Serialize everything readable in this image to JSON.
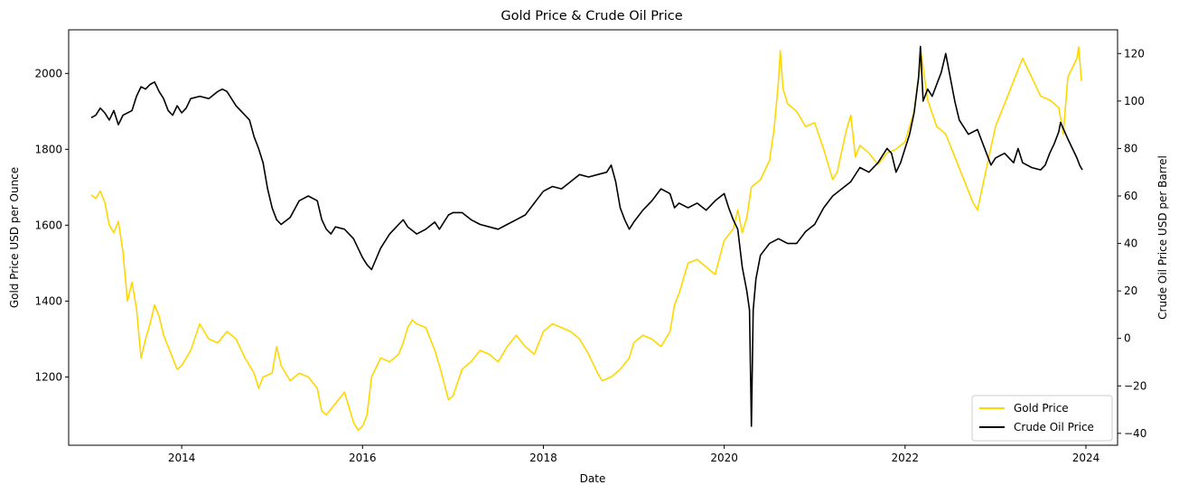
{
  "chart_data": {
    "type": "line",
    "title": "Gold Price & Crude Oil Price",
    "xlabel": "Date",
    "ylabel_left": "Gold Price USD per Ounce",
    "ylabel_right": "Crude Oil Price USD per Barrel",
    "x_ticks": [
      "2014",
      "2016",
      "2018",
      "2020",
      "2022",
      "2024"
    ],
    "xlim": [
      2012.75,
      2024.35
    ],
    "ylim_left": [
      1020,
      2115
    ],
    "ylim_right": [
      -45,
      130
    ],
    "y_ticks_left": [
      1200,
      1400,
      1600,
      1800,
      2000
    ],
    "y_ticks_right": [
      -40,
      -20,
      0,
      20,
      40,
      60,
      80,
      100,
      120
    ],
    "grid": false,
    "legend_position": "lower-right",
    "series": [
      {
        "name": "Gold Price",
        "axis": "left",
        "color": "#FFD700",
        "points": [
          [
            2013.0,
            1680
          ],
          [
            2013.05,
            1670
          ],
          [
            2013.1,
            1690
          ],
          [
            2013.15,
            1660
          ],
          [
            2013.2,
            1600
          ],
          [
            2013.25,
            1580
          ],
          [
            2013.3,
            1610
          ],
          [
            2013.35,
            1530
          ],
          [
            2013.4,
            1400
          ],
          [
            2013.45,
            1450
          ],
          [
            2013.5,
            1380
          ],
          [
            2013.55,
            1250
          ],
          [
            2013.6,
            1300
          ],
          [
            2013.65,
            1340
          ],
          [
            2013.7,
            1390
          ],
          [
            2013.75,
            1360
          ],
          [
            2013.8,
            1310
          ],
          [
            2013.85,
            1280
          ],
          [
            2013.9,
            1250
          ],
          [
            2013.95,
            1220
          ],
          [
            2014.0,
            1230
          ],
          [
            2014.1,
            1270
          ],
          [
            2014.2,
            1340
          ],
          [
            2014.3,
            1300
          ],
          [
            2014.4,
            1290
          ],
          [
            2014.5,
            1320
          ],
          [
            2014.6,
            1300
          ],
          [
            2014.7,
            1250
          ],
          [
            2014.8,
            1210
          ],
          [
            2014.85,
            1170
          ],
          [
            2014.9,
            1200
          ],
          [
            2015.0,
            1210
          ],
          [
            2015.05,
            1280
          ],
          [
            2015.1,
            1230
          ],
          [
            2015.2,
            1190
          ],
          [
            2015.3,
            1210
          ],
          [
            2015.4,
            1200
          ],
          [
            2015.5,
            1170
          ],
          [
            2015.55,
            1110
          ],
          [
            2015.6,
            1100
          ],
          [
            2015.7,
            1130
          ],
          [
            2015.8,
            1160
          ],
          [
            2015.9,
            1080
          ],
          [
            2015.95,
            1060
          ],
          [
            2016.0,
            1070
          ],
          [
            2016.05,
            1100
          ],
          [
            2016.1,
            1200
          ],
          [
            2016.2,
            1250
          ],
          [
            2016.3,
            1240
          ],
          [
            2016.4,
            1260
          ],
          [
            2016.45,
            1290
          ],
          [
            2016.5,
            1330
          ],
          [
            2016.55,
            1350
          ],
          [
            2016.6,
            1340
          ],
          [
            2016.7,
            1330
          ],
          [
            2016.8,
            1270
          ],
          [
            2016.85,
            1230
          ],
          [
            2016.95,
            1140
          ],
          [
            2017.0,
            1150
          ],
          [
            2017.1,
            1220
          ],
          [
            2017.2,
            1240
          ],
          [
            2017.3,
            1270
          ],
          [
            2017.4,
            1260
          ],
          [
            2017.5,
            1240
          ],
          [
            2017.6,
            1280
          ],
          [
            2017.7,
            1310
          ],
          [
            2017.8,
            1280
          ],
          [
            2017.9,
            1260
          ],
          [
            2018.0,
            1320
          ],
          [
            2018.1,
            1340
          ],
          [
            2018.2,
            1330
          ],
          [
            2018.3,
            1320
          ],
          [
            2018.4,
            1300
          ],
          [
            2018.5,
            1260
          ],
          [
            2018.6,
            1210
          ],
          [
            2018.65,
            1190
          ],
          [
            2018.75,
            1200
          ],
          [
            2018.85,
            1220
          ],
          [
            2018.95,
            1250
          ],
          [
            2019.0,
            1290
          ],
          [
            2019.1,
            1310
          ],
          [
            2019.2,
            1300
          ],
          [
            2019.3,
            1280
          ],
          [
            2019.4,
            1320
          ],
          [
            2019.45,
            1390
          ],
          [
            2019.5,
            1420
          ],
          [
            2019.6,
            1500
          ],
          [
            2019.7,
            1510
          ],
          [
            2019.8,
            1490
          ],
          [
            2019.9,
            1470
          ],
          [
            2020.0,
            1560
          ],
          [
            2020.1,
            1590
          ],
          [
            2020.15,
            1640
          ],
          [
            2020.2,
            1580
          ],
          [
            2020.25,
            1620
          ],
          [
            2020.3,
            1700
          ],
          [
            2020.4,
            1720
          ],
          [
            2020.5,
            1770
          ],
          [
            2020.55,
            1850
          ],
          [
            2020.6,
            1980
          ],
          [
            2020.62,
            2060
          ],
          [
            2020.65,
            1960
          ],
          [
            2020.7,
            1920
          ],
          [
            2020.8,
            1900
          ],
          [
            2020.9,
            1860
          ],
          [
            2021.0,
            1870
          ],
          [
            2021.1,
            1800
          ],
          [
            2021.2,
            1720
          ],
          [
            2021.25,
            1740
          ],
          [
            2021.35,
            1850
          ],
          [
            2021.4,
            1890
          ],
          [
            2021.45,
            1780
          ],
          [
            2021.5,
            1810
          ],
          [
            2021.6,
            1790
          ],
          [
            2021.7,
            1760
          ],
          [
            2021.8,
            1790
          ],
          [
            2021.9,
            1800
          ],
          [
            2022.0,
            1820
          ],
          [
            2022.1,
            1900
          ],
          [
            2022.18,
            2050
          ],
          [
            2022.25,
            1930
          ],
          [
            2022.35,
            1860
          ],
          [
            2022.45,
            1840
          ],
          [
            2022.55,
            1780
          ],
          [
            2022.65,
            1720
          ],
          [
            2022.75,
            1660
          ],
          [
            2022.8,
            1640
          ],
          [
            2022.9,
            1750
          ],
          [
            2023.0,
            1860
          ],
          [
            2023.1,
            1920
          ],
          [
            2023.2,
            1980
          ],
          [
            2023.3,
            2040
          ],
          [
            2023.4,
            1990
          ],
          [
            2023.5,
            1940
          ],
          [
            2023.6,
            1930
          ],
          [
            2023.7,
            1910
          ],
          [
            2023.75,
            1840
          ],
          [
            2023.8,
            1990
          ],
          [
            2023.9,
            2040
          ],
          [
            2023.92,
            2070
          ],
          [
            2023.95,
            1980
          ]
        ]
      },
      {
        "name": "Crude Oil Price",
        "axis": "right",
        "color": "#000000",
        "points": [
          [
            2013.0,
            93
          ],
          [
            2013.05,
            94
          ],
          [
            2013.1,
            97
          ],
          [
            2013.15,
            95
          ],
          [
            2013.2,
            92
          ],
          [
            2013.25,
            96
          ],
          [
            2013.3,
            90
          ],
          [
            2013.35,
            94
          ],
          [
            2013.45,
            96
          ],
          [
            2013.5,
            102
          ],
          [
            2013.55,
            106
          ],
          [
            2013.6,
            105
          ],
          [
            2013.65,
            107
          ],
          [
            2013.7,
            108
          ],
          [
            2013.75,
            104
          ],
          [
            2013.8,
            101
          ],
          [
            2013.85,
            96
          ],
          [
            2013.9,
            94
          ],
          [
            2013.95,
            98
          ],
          [
            2014.0,
            95
          ],
          [
            2014.05,
            97
          ],
          [
            2014.1,
            101
          ],
          [
            2014.2,
            102
          ],
          [
            2014.3,
            101
          ],
          [
            2014.4,
            104
          ],
          [
            2014.45,
            105
          ],
          [
            2014.5,
            104
          ],
          [
            2014.55,
            101
          ],
          [
            2014.6,
            98
          ],
          [
            2014.7,
            94
          ],
          [
            2014.75,
            92
          ],
          [
            2014.8,
            85
          ],
          [
            2014.85,
            80
          ],
          [
            2014.9,
            74
          ],
          [
            2014.95,
            63
          ],
          [
            2015.0,
            55
          ],
          [
            2015.05,
            50
          ],
          [
            2015.1,
            48
          ],
          [
            2015.2,
            51
          ],
          [
            2015.3,
            58
          ],
          [
            2015.4,
            60
          ],
          [
            2015.5,
            58
          ],
          [
            2015.55,
            50
          ],
          [
            2015.6,
            46
          ],
          [
            2015.65,
            44
          ],
          [
            2015.7,
            47
          ],
          [
            2015.8,
            46
          ],
          [
            2015.9,
            42
          ],
          [
            2015.95,
            38
          ],
          [
            2016.0,
            34
          ],
          [
            2016.05,
            31
          ],
          [
            2016.1,
            29
          ],
          [
            2016.2,
            38
          ],
          [
            2016.3,
            44
          ],
          [
            2016.4,
            48
          ],
          [
            2016.45,
            50
          ],
          [
            2016.5,
            47
          ],
          [
            2016.6,
            44
          ],
          [
            2016.7,
            46
          ],
          [
            2016.8,
            49
          ],
          [
            2016.85,
            46
          ],
          [
            2016.95,
            52
          ],
          [
            2017.0,
            53
          ],
          [
            2017.1,
            53
          ],
          [
            2017.2,
            50
          ],
          [
            2017.3,
            48
          ],
          [
            2017.4,
            47
          ],
          [
            2017.5,
            46
          ],
          [
            2017.6,
            48
          ],
          [
            2017.7,
            50
          ],
          [
            2017.8,
            52
          ],
          [
            2017.9,
            57
          ],
          [
            2018.0,
            62
          ],
          [
            2018.1,
            64
          ],
          [
            2018.2,
            63
          ],
          [
            2018.3,
            66
          ],
          [
            2018.4,
            69
          ],
          [
            2018.5,
            68
          ],
          [
            2018.6,
            69
          ],
          [
            2018.7,
            70
          ],
          [
            2018.75,
            73
          ],
          [
            2018.8,
            66
          ],
          [
            2018.85,
            55
          ],
          [
            2018.9,
            50
          ],
          [
            2018.95,
            46
          ],
          [
            2019.0,
            49
          ],
          [
            2019.1,
            54
          ],
          [
            2019.2,
            58
          ],
          [
            2019.3,
            63
          ],
          [
            2019.4,
            61
          ],
          [
            2019.45,
            55
          ],
          [
            2019.5,
            57
          ],
          [
            2019.6,
            55
          ],
          [
            2019.7,
            57
          ],
          [
            2019.8,
            54
          ],
          [
            2019.9,
            58
          ],
          [
            2020.0,
            61
          ],
          [
            2020.05,
            55
          ],
          [
            2020.1,
            50
          ],
          [
            2020.15,
            46
          ],
          [
            2020.2,
            30
          ],
          [
            2020.25,
            20
          ],
          [
            2020.28,
            12
          ],
          [
            2020.3,
            -37
          ],
          [
            2020.32,
            12
          ],
          [
            2020.35,
            25
          ],
          [
            2020.4,
            35
          ],
          [
            2020.5,
            40
          ],
          [
            2020.6,
            42
          ],
          [
            2020.7,
            40
          ],
          [
            2020.8,
            40
          ],
          [
            2020.9,
            45
          ],
          [
            2021.0,
            48
          ],
          [
            2021.1,
            55
          ],
          [
            2021.2,
            60
          ],
          [
            2021.3,
            63
          ],
          [
            2021.4,
            66
          ],
          [
            2021.5,
            72
          ],
          [
            2021.6,
            70
          ],
          [
            2021.7,
            74
          ],
          [
            2021.8,
            80
          ],
          [
            2021.85,
            78
          ],
          [
            2021.9,
            70
          ],
          [
            2021.95,
            74
          ],
          [
            2022.0,
            80
          ],
          [
            2022.05,
            86
          ],
          [
            2022.1,
            95
          ],
          [
            2022.15,
            110
          ],
          [
            2022.17,
            123
          ],
          [
            2022.2,
            100
          ],
          [
            2022.25,
            105
          ],
          [
            2022.3,
            102
          ],
          [
            2022.4,
            112
          ],
          [
            2022.45,
            120
          ],
          [
            2022.5,
            110
          ],
          [
            2022.55,
            100
          ],
          [
            2022.6,
            92
          ],
          [
            2022.7,
            86
          ],
          [
            2022.8,
            88
          ],
          [
            2022.9,
            78
          ],
          [
            2022.95,
            73
          ],
          [
            2023.0,
            76
          ],
          [
            2023.1,
            78
          ],
          [
            2023.2,
            74
          ],
          [
            2023.25,
            80
          ],
          [
            2023.3,
            74
          ],
          [
            2023.4,
            72
          ],
          [
            2023.5,
            71
          ],
          [
            2023.55,
            73
          ],
          [
            2023.6,
            78
          ],
          [
            2023.65,
            82
          ],
          [
            2023.7,
            87
          ],
          [
            2023.72,
            91
          ],
          [
            2023.8,
            84
          ],
          [
            2023.85,
            80
          ],
          [
            2023.9,
            76
          ],
          [
            2023.93,
            73
          ],
          [
            2023.96,
            71
          ]
        ]
      }
    ]
  }
}
